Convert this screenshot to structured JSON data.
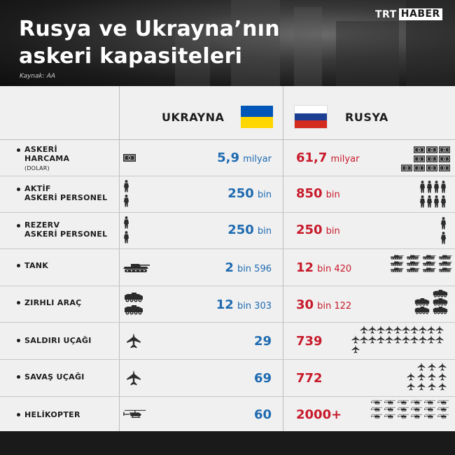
{
  "header": {
    "title_line1": "Rusya ve Ukrayna’nın",
    "title_line2": "askeri kapasiteleri",
    "source": "Kaynak: AA",
    "logo_part1": "TRT",
    "logo_part2": "HABER"
  },
  "columns": {
    "ukraine": "UKRAYNA",
    "russia": "RUSYA"
  },
  "colors": {
    "ukraine": "#1e6ab0",
    "russia": "#c71a2a",
    "ukraine_flag_blue": "#0057b7",
    "ukraine_flag_yellow": "#ffd700",
    "russia_flag_white": "#ffffff",
    "russia_flag_blue": "#1c3f94",
    "russia_flag_red": "#d52b1e"
  },
  "rows": [
    {
      "label1": "ASKERİ",
      "label2": "HARCAMA",
      "sublabel": "(DOLAR)",
      "icon": "banknote-icon",
      "ukraine_value": "5,9",
      "ukraine_unit": "milyar",
      "russia_value": "61,7",
      "russia_unit": "milyar",
      "russia_icon_count": 9
    },
    {
      "label1": "AKTİF",
      "label2": "ASKERİ PERSONEL",
      "icon": "soldier-icon",
      "ukraine_value": "250",
      "ukraine_unit": "bin",
      "russia_value": "850",
      "russia_unit": "bin",
      "russia_icon_count": 8
    },
    {
      "label1": "REZERV",
      "label2": "ASKERİ PERSONEL",
      "icon": "soldier-icon",
      "ukraine_value": "250",
      "ukraine_unit": "bin",
      "russia_value": "250",
      "russia_unit": "bin",
      "russia_icon_count": 2
    },
    {
      "label1": "TANK",
      "icon": "tank-icon",
      "ukraine_value": "2",
      "ukraine_unit": "bin 596",
      "russia_value": "12",
      "russia_unit": "bin 420",
      "russia_icon_count": 12
    },
    {
      "label1": "ZIRHLI ARAÇ",
      "icon": "armored-vehicle-icon",
      "ukraine_value": "12",
      "ukraine_unit": "bin 303",
      "russia_value": "30",
      "russia_unit": "bin 122",
      "russia_icon_count": 5
    },
    {
      "label1": "SALDIRI UÇAĞI",
      "icon": "attack-aircraft-icon",
      "ukraine_value": "29",
      "ukraine_unit": "",
      "russia_value": "739",
      "russia_unit": "",
      "russia_icon_count": 22
    },
    {
      "label1": "SAVAŞ UÇAĞI",
      "icon": "fighter-jet-icon",
      "ukraine_value": "69",
      "ukraine_unit": "",
      "russia_value": "772",
      "russia_unit": "",
      "russia_icon_count": 12
    },
    {
      "label1": "HELİKOPTER",
      "icon": "helicopter-icon",
      "ukraine_value": "60",
      "ukraine_unit": "",
      "russia_value": "2000+",
      "russia_unit": "",
      "russia_icon_count": 18
    }
  ]
}
